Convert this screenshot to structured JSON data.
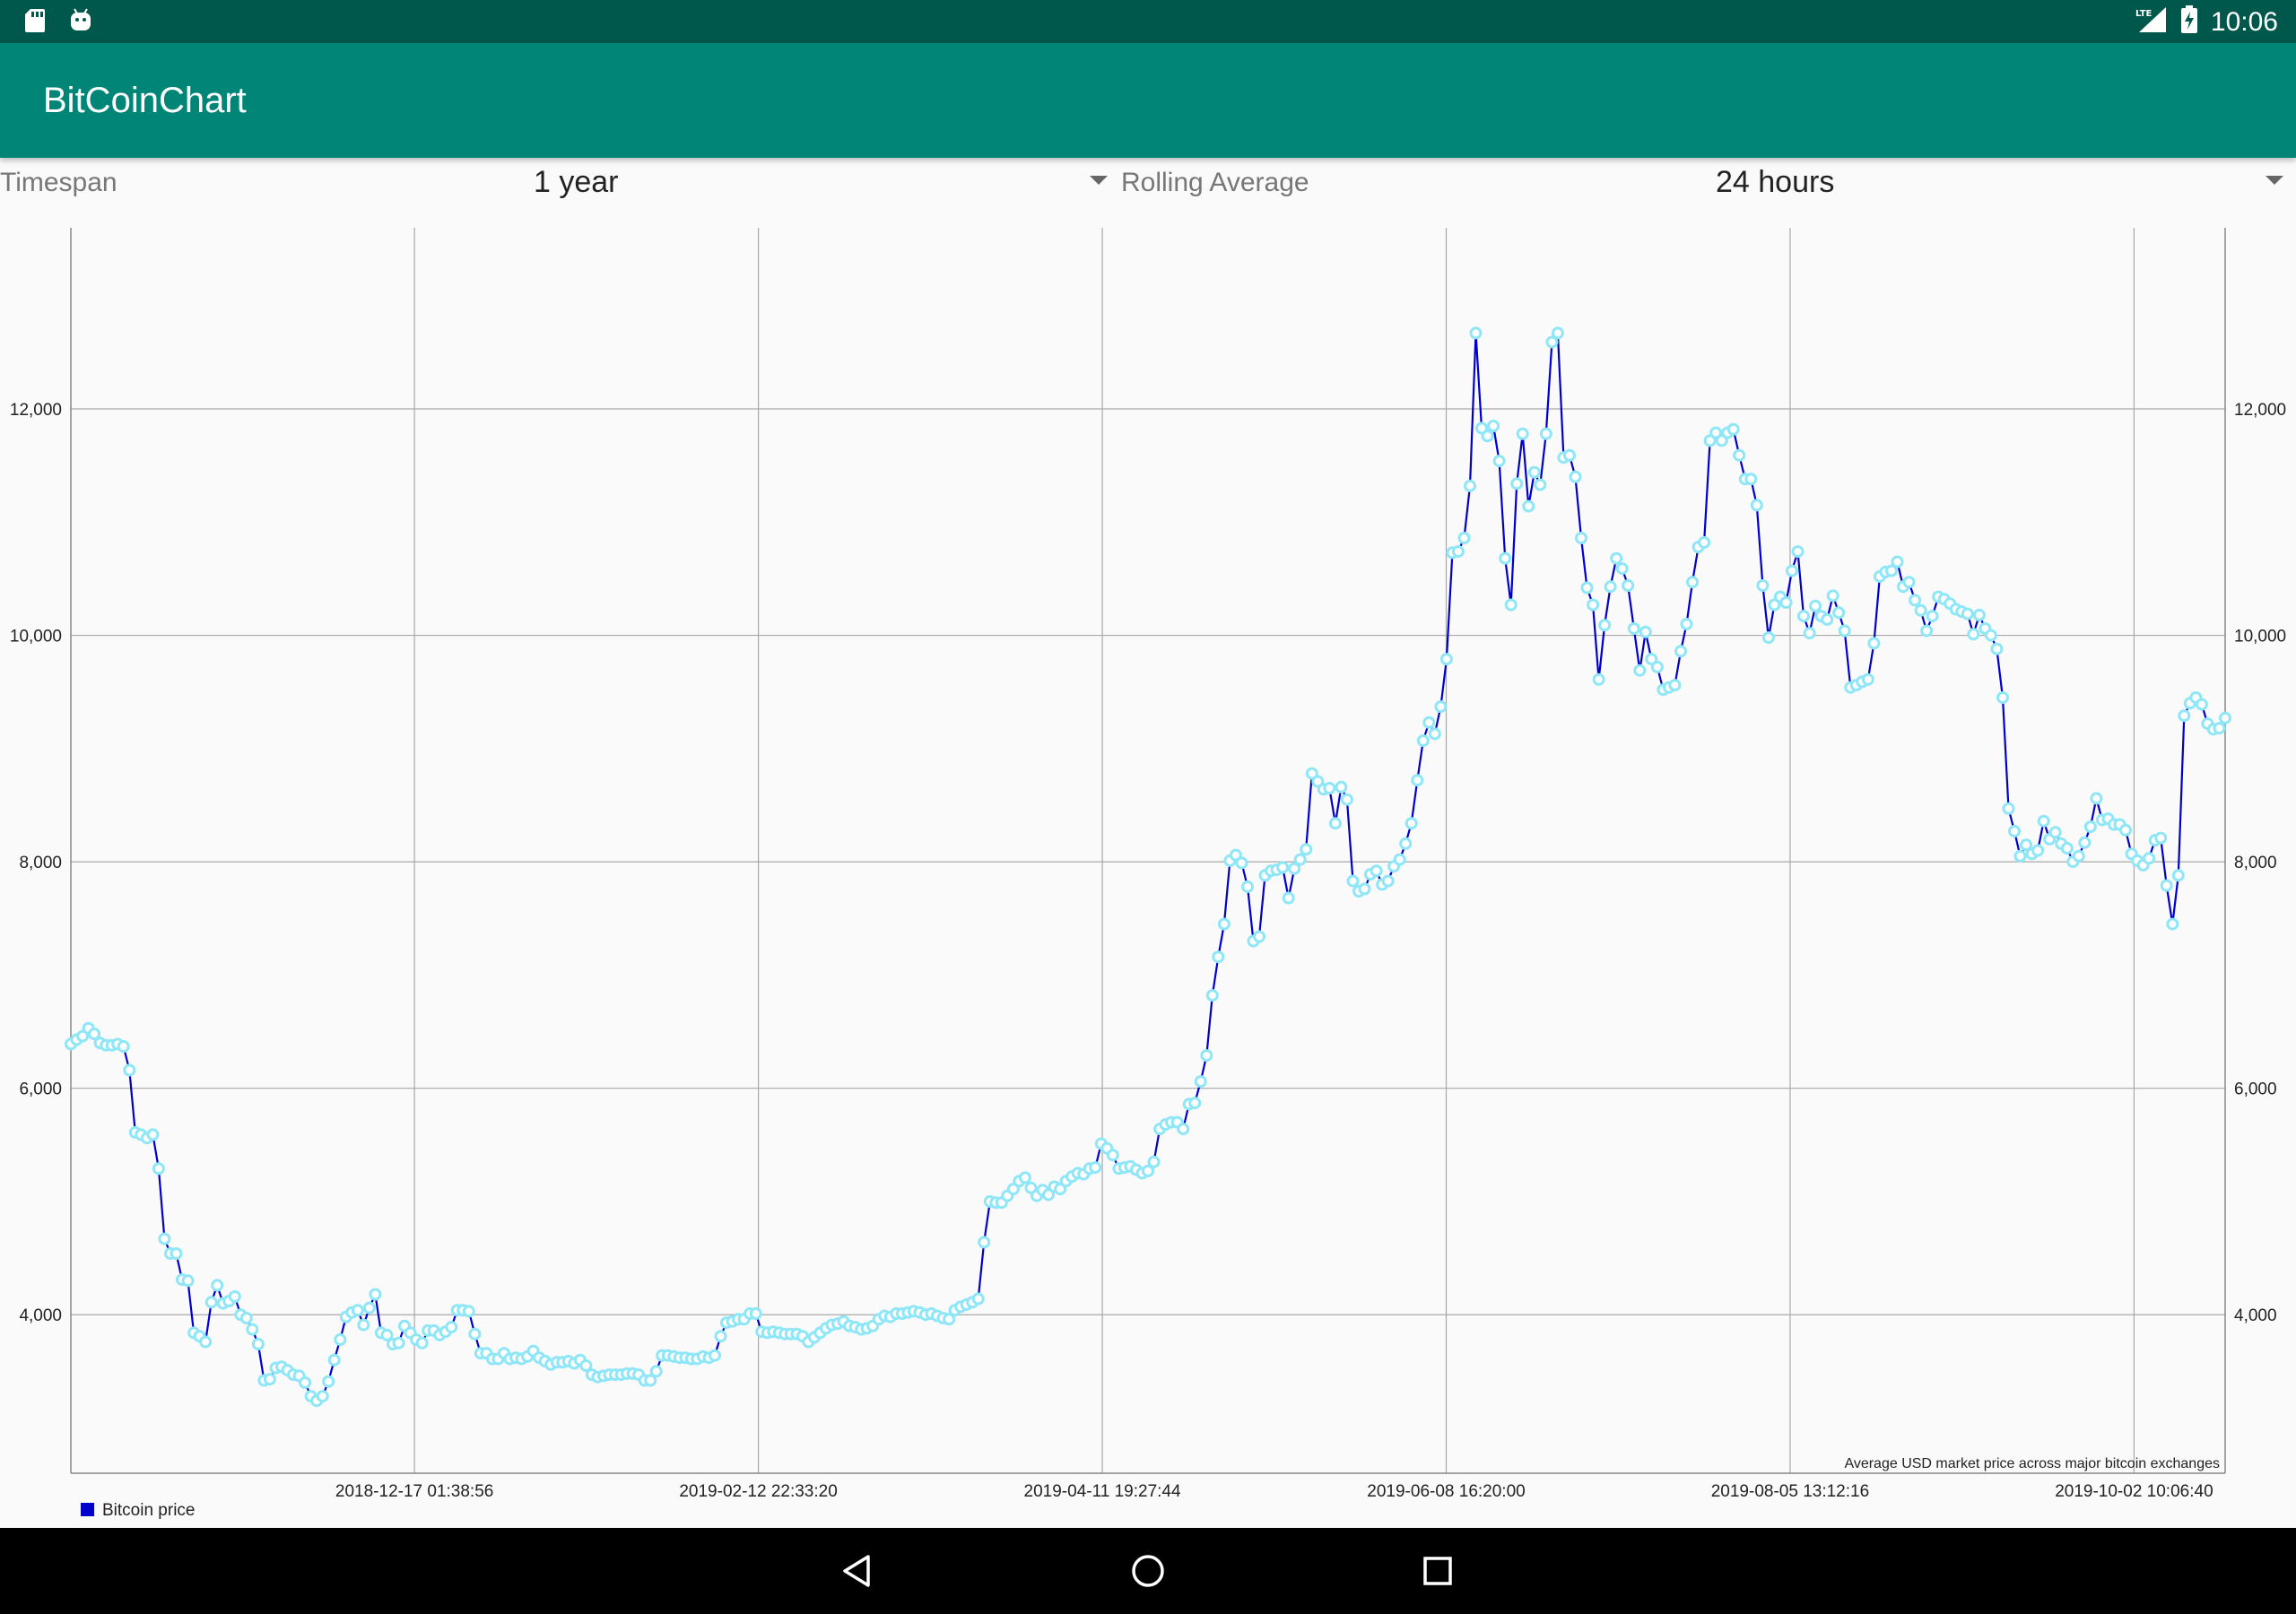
{
  "status_bar": {
    "time": "10:06",
    "network": "LTE",
    "left_icons": [
      "sd-card-icon",
      "android-icon"
    ],
    "right_icons": [
      "lte-signal-icon",
      "battery-charging-icon"
    ]
  },
  "app_bar": {
    "title": "BitCoinChart",
    "color": "#008577"
  },
  "controls": {
    "timespan": {
      "label": "Timespan",
      "value": "1 year"
    },
    "rolling": {
      "label": "Rolling Average",
      "value": "24 hours"
    }
  },
  "chart_data": {
    "type": "line",
    "title": "",
    "description": "Average USD market price across major bitcoin exchanges",
    "legend": "Bitcoin price",
    "legend_position": "bottom-left",
    "line_color": "#0000cc",
    "point_color": "#8ee6f7",
    "grid": true,
    "ylim": [
      2600,
      13600
    ],
    "y_ticks": [
      4000,
      6000,
      8000,
      10000,
      12000
    ],
    "y_tick_labels": [
      "4,000",
      "6,000",
      "8,000",
      "10,000",
      "12,000"
    ],
    "x_tick_labels": [
      "2018-12-17 01:38:56",
      "2019-02-12 22:33:20",
      "2019-04-11 19:27:44",
      "2019-06-08 16:20:00",
      "2019-08-05 13:12:16",
      "2019-10-02 10:06:40"
    ],
    "start_date": "2018-10-20",
    "x_tick_day_offsets": [
      57.9,
      115.85,
      173.8,
      231.75,
      289.7,
      347.65
    ],
    "x_max_day": 363,
    "values": [
      6390,
      6430,
      6460,
      6530,
      6480,
      6400,
      6380,
      6380,
      6390,
      6370,
      6160,
      5610,
      5590,
      5560,
      5590,
      5290,
      4670,
      4540,
      4540,
      4310,
      4300,
      3840,
      3810,
      3760,
      4110,
      4260,
      4100,
      4120,
      4160,
      4000,
      3970,
      3870,
      3740,
      3420,
      3430,
      3530,
      3540,
      3510,
      3470,
      3460,
      3400,
      3280,
      3240,
      3280,
      3410,
      3600,
      3780,
      3980,
      4020,
      4040,
      3910,
      4060,
      4180,
      3840,
      3820,
      3740,
      3750,
      3900,
      3840,
      3780,
      3750,
      3860,
      3860,
      3820,
      3850,
      3890,
      4040,
      4040,
      4030,
      3830,
      3660,
      3660,
      3610,
      3610,
      3660,
      3610,
      3620,
      3610,
      3630,
      3680,
      3620,
      3590,
      3560,
      3580,
      3580,
      3590,
      3570,
      3600,
      3550,
      3470,
      3450,
      3460,
      3470,
      3470,
      3470,
      3480,
      3480,
      3470,
      3420,
      3420,
      3500,
      3640,
      3640,
      3630,
      3620,
      3620,
      3610,
      3610,
      3630,
      3620,
      3640,
      3810,
      3930,
      3940,
      3960,
      3960,
      4010,
      4010,
      3850,
      3840,
      3850,
      3840,
      3830,
      3830,
      3830,
      3810,
      3760,
      3800,
      3840,
      3880,
      3910,
      3920,
      3940,
      3900,
      3890,
      3870,
      3880,
      3900,
      3960,
      3990,
      3980,
      4010,
      4010,
      4020,
      4030,
      4020,
      4000,
      4010,
      3990,
      3970,
      3960,
      4040,
      4070,
      4090,
      4110,
      4140,
      4640,
      5000,
      4990,
      4990,
      5050,
      5110,
      5180,
      5210,
      5120,
      5050,
      5100,
      5060,
      5130,
      5110,
      5180,
      5220,
      5250,
      5240,
      5290,
      5300,
      5510,
      5470,
      5410,
      5290,
      5300,
      5310,
      5280,
      5250,
      5270,
      5350,
      5640,
      5680,
      5700,
      5700,
      5640,
      5860,
      5870,
      6060,
      6290,
      6820,
      7160,
      7450,
      8010,
      8060,
      7990,
      7780,
      7300,
      7340,
      7880,
      7920,
      7930,
      7950,
      7680,
      7940,
      8020,
      8110,
      8780,
      8710,
      8640,
      8650,
      8340,
      8660,
      8550,
      7830,
      7740,
      7760,
      7890,
      7920,
      7800,
      7830,
      7960,
      8020,
      8160,
      8340,
      8720,
      9070,
      9230,
      9130,
      9370,
      9790,
      10730,
      10740,
      10860,
      11320,
      12670,
      11830,
      11760,
      11850,
      11540,
      10680,
      10270,
      11340,
      11780,
      11140,
      11440,
      11330,
      11780,
      12590,
      12670,
      11570,
      11590,
      11400,
      10860,
      10420,
      10270,
      9610,
      10090,
      10430,
      10680,
      10590,
      10440,
      10060,
      9690,
      10030,
      9790,
      9720,
      9520,
      9540,
      9560,
      9860,
      10100,
      10470,
      10780,
      10820,
      11720,
      11790,
      11720,
      11790,
      11820,
      11590,
      11380,
      11380,
      11150,
      10440,
      9980,
      10270,
      10340,
      10290,
      10570,
      10740,
      10170,
      10020,
      10260,
      10170,
      10140,
      10350,
      10200,
      10040,
      9540,
      9560,
      9590,
      9610,
      9930,
      10520,
      10560,
      10570,
      10650,
      10430,
      10470,
      10310,
      10220,
      10040,
      10170,
      10340,
      10320,
      10280,
      10230,
      10210,
      10190,
      10010,
      10180,
      10060,
      10000,
      9880,
      9450,
      8470,
      8270,
      8050,
      8150,
      8070,
      8100,
      8360,
      8200,
      8260,
      8160,
      8120,
      8000,
      8050,
      8170,
      8310,
      8560,
      8370,
      8380,
      8330,
      8330,
      8280,
      8070,
      8010,
      7970,
      8030,
      8190,
      8210,
      7790,
      7450,
      7880,
      9290,
      9400,
      9450,
      9390,
      9220,
      9170,
      9180,
      9270
    ]
  },
  "nav_bar": {
    "buttons": [
      "back-icon",
      "home-icon",
      "recents-icon"
    ]
  }
}
